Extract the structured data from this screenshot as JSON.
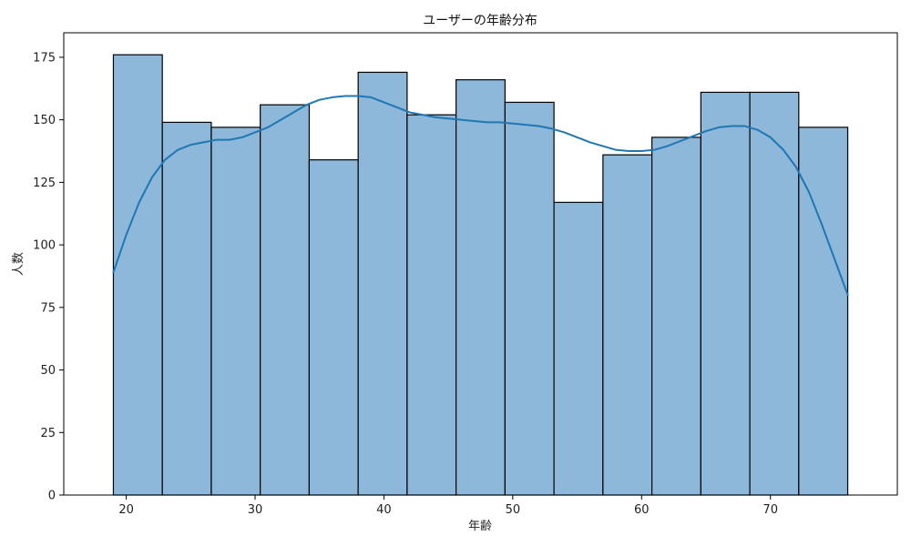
{
  "chart_data": {
    "type": "bar",
    "title": "ユーザーの年齢分布",
    "xlabel": "年齢",
    "ylabel": "人数",
    "bin_edges": [
      19.0,
      22.8,
      26.6,
      30.4,
      34.2,
      38.0,
      41.8,
      45.6,
      49.4,
      53.2,
      57.0,
      60.8,
      64.6,
      68.4,
      72.2,
      76.0
    ],
    "values": [
      176,
      149,
      147,
      156,
      134,
      169,
      152,
      166,
      157,
      117,
      136,
      143,
      161,
      161,
      147
    ],
    "kde": {
      "x": [
        19,
        20,
        21,
        22,
        23,
        24,
        25,
        26,
        27,
        28,
        29,
        30,
        31,
        32,
        33,
        34,
        35,
        36,
        37,
        38,
        39,
        40,
        41,
        42,
        43,
        44,
        45,
        46,
        47,
        48,
        49,
        50,
        51,
        52,
        53,
        54,
        55,
        56,
        57,
        58,
        59,
        60,
        61,
        62,
        63,
        64,
        65,
        66,
        67,
        68,
        69,
        70,
        71,
        72,
        73,
        74,
        75,
        76
      ],
      "y": [
        89,
        104,
        117,
        127,
        134,
        138,
        140,
        141,
        142,
        142,
        143,
        145,
        147,
        150,
        153,
        156,
        158,
        159,
        159.5,
        159.5,
        159,
        157,
        155,
        153,
        152,
        151,
        150.5,
        150,
        149.5,
        149,
        149,
        148.5,
        148,
        147.5,
        146.5,
        145,
        143,
        141,
        139.5,
        138,
        137.5,
        137.5,
        138,
        139.5,
        141.5,
        143.5,
        145.5,
        147,
        147.5,
        147.5,
        146,
        143,
        138,
        131,
        121,
        108,
        94,
        80
      ]
    },
    "xlim": [
      15.15,
      79.85
    ],
    "ylim": [
      0,
      184.8
    ],
    "x_ticks": [
      20,
      30,
      40,
      50,
      60,
      70
    ],
    "y_ticks": [
      0,
      25,
      50,
      75,
      100,
      125,
      150,
      175
    ],
    "grid": false,
    "colors": {
      "bar_fill": "#8db8d9",
      "bar_edge": "#000000",
      "kde_line": "#1f77b4",
      "axes": "#000000"
    }
  }
}
